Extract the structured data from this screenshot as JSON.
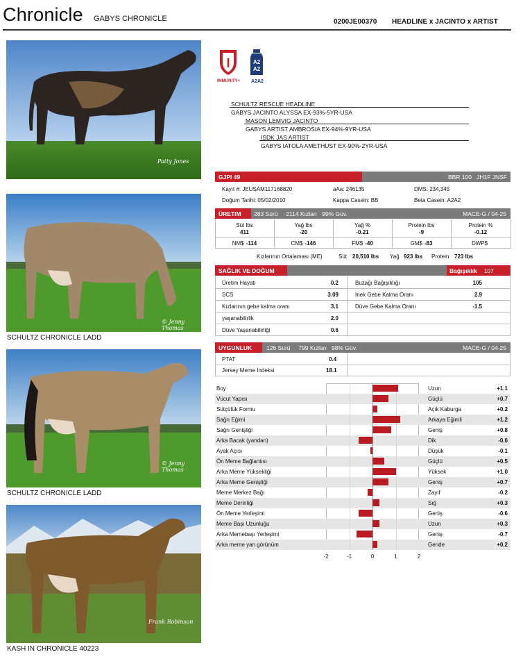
{
  "header": {
    "title": "Chronicle",
    "subtitle": "GABYS CHRONICLE",
    "code": "0200JE00370",
    "lineage": "HEADLINE x JACINTO x ARTIST"
  },
  "photos": {
    "sig1": "Patty Jones",
    "sig2": "© Jenny Thomas",
    "sig3": "© Jenny Thomas",
    "sig4": "Frank Robinson",
    "cap2": "SCHULTZ CHRONICLE LADD",
    "cap3": "SCHULTZ CHRONICLE LADD",
    "cap4": "KASH IN CHRONICLE 40223"
  },
  "badges": {
    "immunity_glyph": "I",
    "immunity_label": "IMMUNITY+",
    "a2_glyph_1": "A2",
    "a2_glyph_2": "A2",
    "a2_label": "A2A2"
  },
  "pedigree": [
    "SCHULTZ RESCUE HEADLINE",
    "GABYS JACINTO ALYSSA EX-93%-5YR-USA",
    "MASON LEMVIG JACINTO",
    "GABYS ARTIST AMBROSIA EX-94%-9YR-USA",
    "ISDK JAS ARTIST",
    "GABYS IATOLA AMETHUST EX-90%-2YR-USA"
  ],
  "gjpi": {
    "label": "GJPI 49",
    "right": "BBR 100   JH1F JNSF",
    "kayit": "Kayıt #: JEUSAM117168820",
    "aaa": "aAa: 246135",
    "dms": "DMS: 234,345",
    "dogum": "Doğum Tarihi: 05/02/2010",
    "kappa": "Kappa Casein: BB",
    "beta": "Beta Casein: A2A2"
  },
  "uretim": {
    "label": "ÜRETIM",
    "info": "283 Sürü     2114 Kızları   99% Güv.",
    "mace": "MACE-G / 04-25",
    "heads": [
      "Süt lbs",
      "Yağ lbs",
      "Yağ %",
      "Protein lbs",
      "Protein %"
    ],
    "vals": [
      "411",
      "-20",
      "-0.21",
      "-9",
      "-0.12"
    ],
    "idx_labels": [
      "NM$",
      "CM$",
      "FM$",
      "GM$",
      "DWP$"
    ],
    "idx_vals": [
      "-114",
      "-146",
      "-40",
      "-83",
      ""
    ],
    "avg_label": "Kızlarının Ortalaması (ME)",
    "avg_sut_l": "Süt",
    "avg_sut": "20,510 lbs",
    "avg_yag_l": "Yağ",
    "avg_yag": "923 lbs",
    "avg_pro_l": "Protein",
    "avg_pro": "723 lbs"
  },
  "saglik": {
    "label": "SAĞLIK VE DOĞUM",
    "bag_label": "Bağışıklık",
    "bag_val": "107",
    "left": [
      {
        "k": "Üretim Hayatı",
        "v": "0.2"
      },
      {
        "k": "SCS",
        "v": "3.09"
      },
      {
        "k": "Kızlarının gebe kalma oranı",
        "v": "3.1"
      },
      {
        "k": "yaşanabilirlik",
        "v": "2.0"
      },
      {
        "k": "Düve Yaşanabilirliği",
        "v": "0.6"
      }
    ],
    "right": [
      {
        "k": "Buzağı Bağışıklığı",
        "v": "105"
      },
      {
        "k": "Inek Gebe Kalma Oranı",
        "v": "2.9"
      },
      {
        "k": "Düve Gebe Kalma Oranı",
        "v": "-1.5"
      }
    ]
  },
  "uygunluk": {
    "label": "UYGUNLUK",
    "info": "126 Sürü     799 Kızları   98% Güv.",
    "mace": "MACE-G / 04-25",
    "ptat_l": "PTAT",
    "ptat": "0.4",
    "jmi_l": "Jersey Meme Indeksi",
    "jmi": "18.1"
  },
  "chart_data": {
    "type": "bar",
    "orientation": "horizontal",
    "xlim": [
      -2,
      2
    ],
    "ticks": [
      "-2",
      "-1",
      "0",
      "1",
      "2"
    ],
    "categories": [
      "Boy",
      "Vücut Yapısı",
      "Sütçülük Formu",
      "Sağrı Eğimi",
      "Sağrı Genişliği",
      "Arka Bacak (yandan)",
      "Ayak Açısı",
      "Ön Meme Bağlantısı",
      "Arka Meme Yüksekliği",
      "Arka Meme Genişliği",
      "Meme Merkez Bağı",
      "Meme Derinliği",
      "Ön Meme Yerleşimi",
      "Meme Başı Uzunluğu",
      "Arka Memebaşı Yerleşimi",
      "Arka meme yan görünüm"
    ],
    "right_labels": [
      "Uzun",
      "Güçlü",
      "Açık Kaburga",
      "Arkaya Eğimli",
      "Geniş",
      "Dik",
      "Düşük",
      "Güçlü",
      "Yüksek",
      "Geniş",
      "Zayıf",
      "Sığ",
      "Geniş",
      "Uzun",
      "Geniş",
      "Geride"
    ],
    "value_labels": [
      "+1.1",
      "+0.7",
      "+0.2",
      "+1.2",
      "+0.8",
      "-0.6",
      "-0.1",
      "+0.5",
      "+1.0",
      "+0.7",
      "-0.2",
      "+0.3",
      "-0.6",
      "+0.3",
      "-0.7",
      "+0.2"
    ],
    "values": [
      1.1,
      0.7,
      0.2,
      1.2,
      0.8,
      -0.6,
      -0.1,
      0.5,
      1.0,
      0.7,
      -0.2,
      0.3,
      -0.6,
      0.3,
      -0.7,
      0.2
    ]
  },
  "colors": {
    "accent": "#c8202a",
    "gray": "#7b7b7b",
    "bar": "#b81c22"
  }
}
